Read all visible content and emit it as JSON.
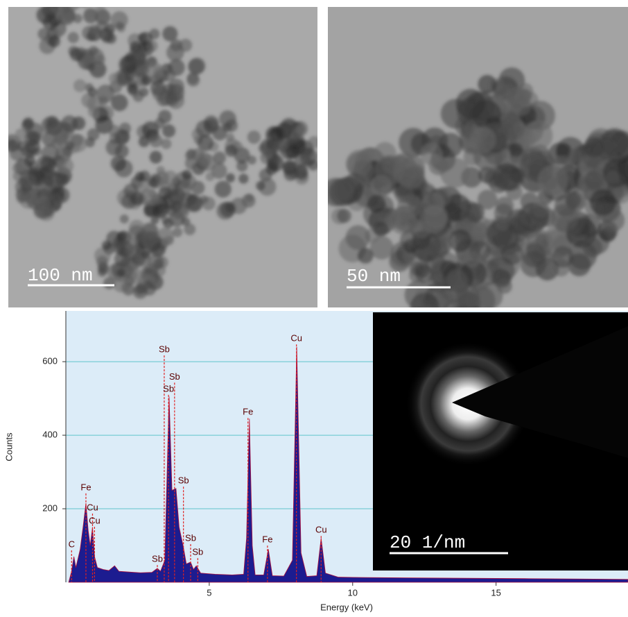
{
  "images": [
    {
      "scale_label": "100 nm"
    },
    {
      "scale_label": "50 nm"
    },
    {
      "scale_label": "20 1/nm"
    }
  ],
  "chart_data": {
    "type": "area",
    "x_label": "Energy (keV)",
    "y_label": "Counts",
    "x": [
      0.1,
      0.2,
      0.28,
      0.35,
      0.5,
      0.6,
      0.7,
      0.78,
      0.85,
      0.93,
      1.0,
      1.1,
      1.3,
      1.5,
      1.7,
      1.85,
      2.2,
      2.6,
      3.0,
      3.19,
      3.3,
      3.45,
      3.6,
      3.7,
      3.84,
      3.95,
      4.1,
      4.2,
      4.35,
      4.45,
      4.55,
      4.7,
      5.2,
      5.8,
      6.2,
      6.3,
      6.4,
      6.5,
      6.6,
      6.9,
      7.06,
      7.2,
      7.6,
      7.9,
      8.05,
      8.2,
      8.4,
      8.75,
      8.9,
      9.05,
      9.5,
      10.5,
      12,
      14,
      16,
      18,
      19.6
    ],
    "values": [
      0,
      30,
      70,
      40,
      90,
      150,
      215,
      140,
      100,
      150,
      70,
      40,
      35,
      32,
      45,
      30,
      28,
      26,
      27,
      38,
      30,
      60,
      505,
      250,
      255,
      150,
      95,
      50,
      55,
      35,
      45,
      25,
      22,
      20,
      22,
      120,
      445,
      100,
      20,
      20,
      90,
      18,
      17,
      60,
      640,
      80,
      16,
      18,
      120,
      25,
      14,
      13,
      12,
      11,
      10,
      9,
      8
    ],
    "color": "#1c1c90",
    "edge_color": "#b0103a",
    "marker_color": "#e02020",
    "xlim": [
      0,
      19.6
    ],
    "ylim": [
      0,
      738
    ],
    "xticks": [
      5,
      10,
      15
    ],
    "yticks": [
      200,
      400,
      600
    ],
    "grid": true,
    "annotations": [
      {
        "text": "C",
        "x": 0.2,
        "y": 102
      },
      {
        "text": "Fe",
        "x": 0.7,
        "y": 257
      },
      {
        "text": "Cu",
        "x": 0.93,
        "y": 202
      },
      {
        "text": "Cu",
        "x": 1.0,
        "y": 166
      },
      {
        "text": "Sb",
        "x": 3.19,
        "y": 62
      },
      {
        "text": "Sb",
        "x": 3.43,
        "y": 632
      },
      {
        "text": "Sb",
        "x": 3.79,
        "y": 558
      },
      {
        "text": "Sb",
        "x": 3.58,
        "y": 525
      },
      {
        "text": "Sb",
        "x": 4.1,
        "y": 275
      },
      {
        "text": "Sb",
        "x": 4.35,
        "y": 119
      },
      {
        "text": "Sb",
        "x": 4.6,
        "y": 81
      },
      {
        "text": "Fe",
        "x": 6.35,
        "y": 462
      },
      {
        "text": "Fe",
        "x": 7.03,
        "y": 115
      },
      {
        "text": "Cu",
        "x": 8.04,
        "y": 662
      },
      {
        "text": "Cu",
        "x": 8.9,
        "y": 141
      }
    ]
  }
}
